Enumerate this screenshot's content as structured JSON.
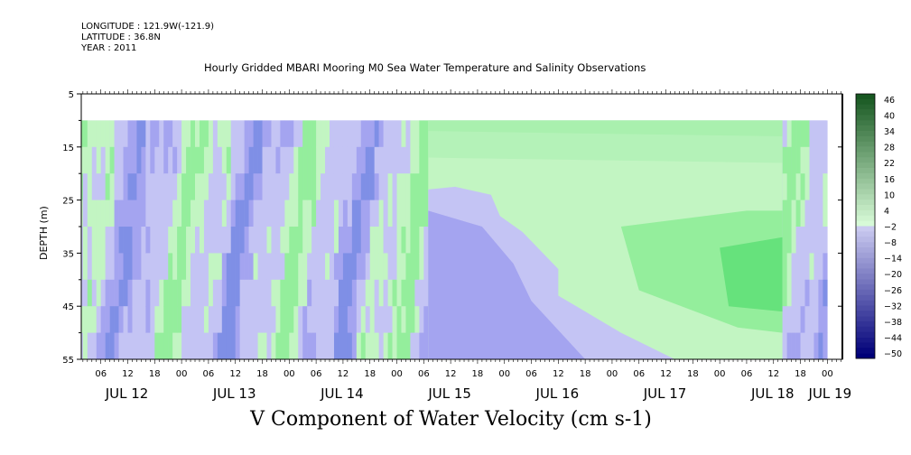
{
  "meta": {
    "longitude": "LONGITUDE : 121.9W(-121.9)",
    "latitude": "LATITUDE : 36.8N",
    "year": "YEAR : 2011"
  },
  "chart_data": {
    "type": "heatmap",
    "title": "Hourly Gridded MBARI Mooring M0 Sea Water Temperature and Salinity Observations",
    "xlabel": "V Component of Water Velocity (cm s-1)",
    "ylabel": "DEPTH (m)",
    "ylim": [
      5,
      55
    ],
    "y_reversed": true,
    "y_ticks": [
      5,
      15,
      25,
      35,
      45,
      55
    ],
    "x_hour_ticks": [
      "06",
      "12",
      "18",
      "00",
      "06",
      "12",
      "18",
      "00",
      "06",
      "12",
      "18",
      "00",
      "06",
      "12",
      "18",
      "00",
      "06",
      "12",
      "18",
      "00",
      "06",
      "12",
      "18",
      "00",
      "06",
      "12",
      "18",
      "00"
    ],
    "x_day_labels": [
      "JUL 12",
      "JUL 13",
      "JUL 14",
      "JUL 15",
      "JUL 16",
      "JUL 17",
      "JUL 18",
      "JUL 19"
    ],
    "data_time_start": "JUL 12 00",
    "data_time_end": "JUL 18 23",
    "depth_top": 10,
    "depth_bottom": 55,
    "colorbar": {
      "levels": [
        48,
        46,
        44,
        42,
        40,
        38,
        36,
        34,
        32,
        30,
        28,
        26,
        24,
        22,
        20,
        18,
        16,
        14,
        12,
        10,
        8,
        6,
        4,
        2,
        0,
        -2,
        -4,
        -6,
        -8,
        -10,
        -12,
        -14,
        -16,
        -18,
        -20,
        -22,
        -24,
        -26,
        -28,
        -30,
        -32,
        -34,
        -36,
        -38,
        -40,
        -42,
        -44,
        -46,
        -48,
        -50
      ],
      "labels": [
        "46",
        "40",
        "34",
        "28",
        "22",
        "16",
        "10",
        "4",
        "−2",
        "−8",
        "−14",
        "−20",
        "−26",
        "−32",
        "−38",
        "−44",
        "−50"
      ],
      "min": -50,
      "max": 50
    },
    "colors": {
      "neg_light": "#c4c4f4",
      "neg_mid": "#a4a4f0",
      "neg_strong": "#7f8fe6",
      "pos_light": "#c2f5c2",
      "pos_mid": "#94ee9c",
      "pos_strong": "#66e27c"
    }
  }
}
